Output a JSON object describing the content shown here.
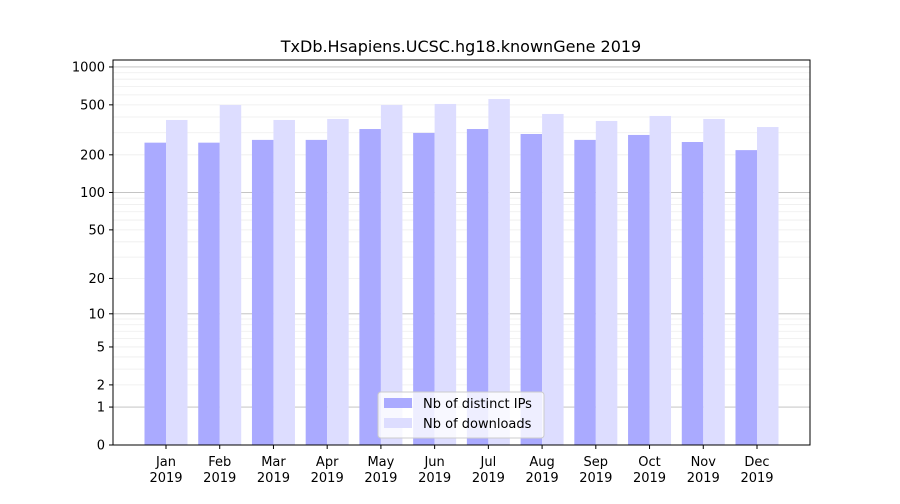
{
  "chart_data": {
    "type": "bar",
    "title": "TxDb.Hsapiens.UCSC.hg18.knownGene 2019",
    "xlabel": "",
    "ylabel": "",
    "yscale": "log(1+x)",
    "ylim": [
      0,
      1136
    ],
    "yticks": [
      0,
      1,
      2,
      5,
      10,
      20,
      50,
      100,
      200,
      500,
      1000
    ],
    "grid": true,
    "legend_position": "bottom-center",
    "categories": [
      "Jan\n2019",
      "Feb\n2019",
      "Mar\n2019",
      "Apr\n2019",
      "May\n2019",
      "Jun\n2019",
      "Jul\n2019",
      "Aug\n2019",
      "Sep\n2019",
      "Oct\n2019",
      "Nov\n2019",
      "Dec\n2019"
    ],
    "series": [
      {
        "name": "Nb of distinct IPs",
        "color": "#aaaaff",
        "values": [
          250,
          250,
          263,
          263,
          321,
          299,
          321,
          293,
          263,
          288,
          253,
          218
        ]
      },
      {
        "name": "Nb of downloads",
        "color": "#ddddff",
        "values": [
          379,
          499,
          379,
          386,
          499,
          508,
          556,
          423,
          372,
          408,
          386,
          333
        ]
      }
    ]
  }
}
